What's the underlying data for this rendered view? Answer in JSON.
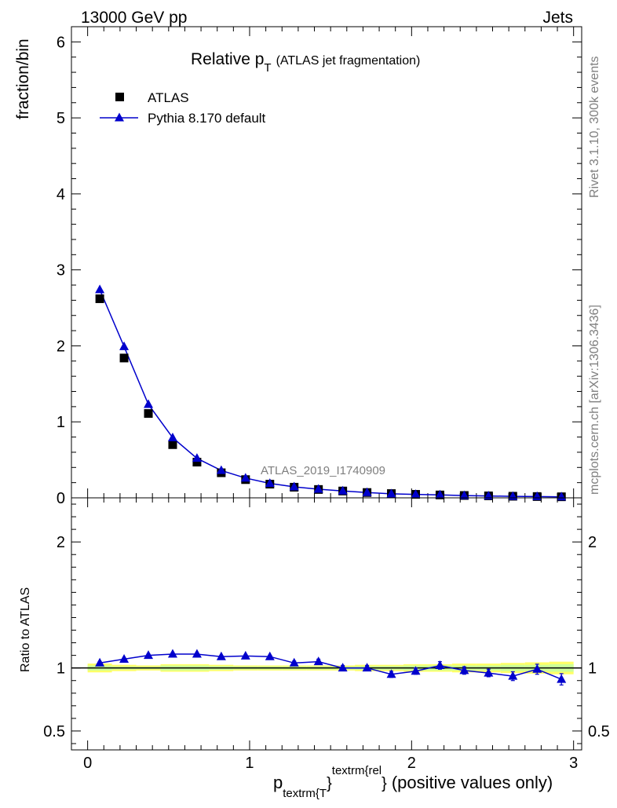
{
  "header": {
    "left": "13000 GeV pp",
    "right": "Jets"
  },
  "side_labels": {
    "rivet": "Rivet 3.1.10,  300k events",
    "mcplots": "mcplots.cern.ch [arXiv:1306.3436]"
  },
  "plot_title": {
    "main": "Relative p",
    "sub": "T",
    "suffix": "(ATLAS jet fragmentation)"
  },
  "analysis_id": "ATLAS_2019_I1740909",
  "legend": {
    "data": "ATLAS",
    "mc": "Pythia 8.170 default"
  },
  "axis": {
    "ylabel_top": "fraction/bin",
    "ylabel_bottom": "Ratio to ATLAS",
    "xlabel": {
      "p": "p",
      "sub1": "textrm{T",
      "sup": "textrm{rel",
      "brace1": "}",
      "brace2": "}",
      "rest": "(positive values only)"
    }
  },
  "colors": {
    "data": "#000000",
    "mc": "#0000cc",
    "band_inner": "#ccff99",
    "band_outer": "#ffff66"
  },
  "chart_data": [
    {
      "type": "scatter",
      "panel": "main",
      "xlim": [
        -0.1,
        3.05
      ],
      "ylim": [
        0,
        6.2
      ],
      "yticks": [
        0,
        1,
        2,
        3,
        4,
        5,
        6
      ],
      "ytick_labels": [
        "0",
        "1",
        "2",
        "3",
        "4",
        "5",
        "6"
      ],
      "series": [
        {
          "name": "ATLAS",
          "marker": "square",
          "x": [
            0.075,
            0.225,
            0.375,
            0.525,
            0.675,
            0.825,
            0.975,
            1.125,
            1.275,
            1.425,
            1.575,
            1.725,
            1.875,
            2.025,
            2.175,
            2.325,
            2.475,
            2.625,
            2.775,
            2.925
          ],
          "y": [
            2.62,
            1.84,
            1.11,
            0.7,
            0.47,
            0.33,
            0.24,
            0.18,
            0.14,
            0.11,
            0.09,
            0.07,
            0.056,
            0.046,
            0.038,
            0.031,
            0.026,
            0.021,
            0.017,
            0.014
          ]
        },
        {
          "name": "Pythia 8.170 default",
          "marker": "triangle",
          "line": true,
          "x": [
            0.075,
            0.225,
            0.375,
            0.525,
            0.675,
            0.825,
            0.975,
            1.125,
            1.275,
            1.425,
            1.575,
            1.725,
            1.875,
            2.025,
            2.175,
            2.325,
            2.475,
            2.625,
            2.775,
            2.925
          ],
          "y": [
            2.74,
            1.99,
            1.23,
            0.79,
            0.52,
            0.36,
            0.26,
            0.19,
            0.145,
            0.114,
            0.09,
            0.07,
            0.053,
            0.045,
            0.039,
            0.03,
            0.025,
            0.02,
            0.017,
            0.013
          ]
        }
      ]
    },
    {
      "type": "line",
      "panel": "ratio",
      "xlim": [
        -0.1,
        3.05
      ],
      "ylim": [
        0.35,
        2.35
      ],
      "yticks": [
        0.5,
        1,
        2
      ],
      "ytick_labels": [
        "0.5",
        "1",
        "2"
      ],
      "xticks": [
        0,
        1,
        2,
        3
      ],
      "xtick_labels": [
        "0",
        "1",
        "2",
        "3"
      ],
      "reference": 1.0,
      "x": [
        0.075,
        0.225,
        0.375,
        0.525,
        0.675,
        0.825,
        0.975,
        1.125,
        1.275,
        1.425,
        1.575,
        1.725,
        1.875,
        2.025,
        2.175,
        2.325,
        2.475,
        2.625,
        2.775,
        2.925
      ],
      "ratio": [
        1.04,
        1.07,
        1.1,
        1.11,
        1.11,
        1.09,
        1.095,
        1.09,
        1.04,
        1.05,
        1.0,
        1.0,
        0.95,
        0.975,
        1.02,
        0.98,
        0.96,
        0.935,
        0.99,
        0.91
      ],
      "errors": [
        0.01,
        0.01,
        0.01,
        0.01,
        0.01,
        0.01,
        0.01,
        0.01,
        0.015,
        0.02,
        0.02,
        0.02,
        0.025,
        0.025,
        0.03,
        0.03,
        0.03,
        0.035,
        0.04,
        0.045
      ],
      "band_inner": [
        0.02,
        0.012,
        0.01,
        0.02,
        0.02,
        0.015,
        0.012,
        0.012,
        0.012,
        0.012,
        0.012,
        0.015,
        0.015,
        0.02,
        0.02,
        0.02,
        0.02,
        0.025,
        0.025,
        0.03
      ],
      "band_outer": [
        0.035,
        0.025,
        0.02,
        0.03,
        0.03,
        0.025,
        0.02,
        0.02,
        0.02,
        0.02,
        0.02,
        0.025,
        0.025,
        0.03,
        0.03,
        0.035,
        0.035,
        0.04,
        0.045,
        0.05
      ]
    }
  ]
}
